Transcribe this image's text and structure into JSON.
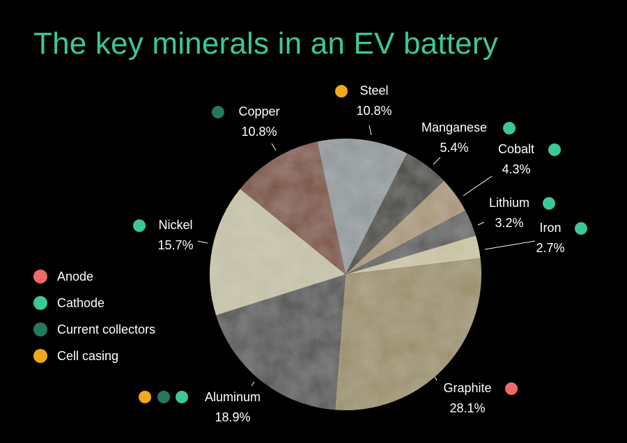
{
  "title": "The key minerals in an EV battery",
  "colors": {
    "title": "#3cc79a",
    "anode": "#f06a6a",
    "cathode": "#3cc79a",
    "current_collectors": "#237a5a",
    "cell_casing": "#f2a81d"
  },
  "legend": [
    {
      "label": "Anode",
      "color": "#f06a6a"
    },
    {
      "label": "Cathode",
      "color": "#3cc79a"
    },
    {
      "label": "Current collectors",
      "color": "#237a5a"
    },
    {
      "label": "Cell casing",
      "color": "#f2a81d"
    }
  ],
  "chart_data": {
    "type": "pie",
    "title": "The key minerals in an EV battery",
    "legend_position": "left",
    "slices": [
      {
        "name": "Steel",
        "value_label": "10.8%",
        "value": 10.8,
        "fill": "#8f969a",
        "markers": [
          "#f2a81d"
        ]
      },
      {
        "name": "Manganese",
        "value_label": "5.4%",
        "value": 5.4,
        "fill": "#3e3f35",
        "markers": [
          "#3cc79a"
        ]
      },
      {
        "name": "Cobalt",
        "value_label": "4.3%",
        "value": 4.3,
        "fill": "#a89476",
        "markers": [
          "#3cc79a"
        ]
      },
      {
        "name": "Lithium",
        "value_label": "3.2%",
        "value": 3.2,
        "fill": "#5c5c5c",
        "markers": [
          "#3cc79a"
        ]
      },
      {
        "name": "Iron",
        "value_label": "2.7%",
        "value": 2.7,
        "fill": "#c8c1a2",
        "markers": [
          "#3cc79a"
        ]
      },
      {
        "name": "Graphite",
        "value_label": "28.1%",
        "value": 28.1,
        "fill": "#9a8e68",
        "markers": [
          "#f06a6a"
        ]
      },
      {
        "name": "Aluminum",
        "value_label": "18.9%",
        "value": 18.9,
        "fill": "#505050",
        "markers": [
          "#f2a81d",
          "#237a5a",
          "#3cc79a"
        ]
      },
      {
        "name": "Nickel",
        "value_label": "15.7%",
        "value": 15.7,
        "fill": "#c3c0a6",
        "markers": [
          "#3cc79a"
        ]
      },
      {
        "name": "Copper",
        "value_label": "10.8%",
        "value": 10.8,
        "fill": "#7a4c3a",
        "markers": [
          "#237a5a"
        ]
      }
    ]
  }
}
